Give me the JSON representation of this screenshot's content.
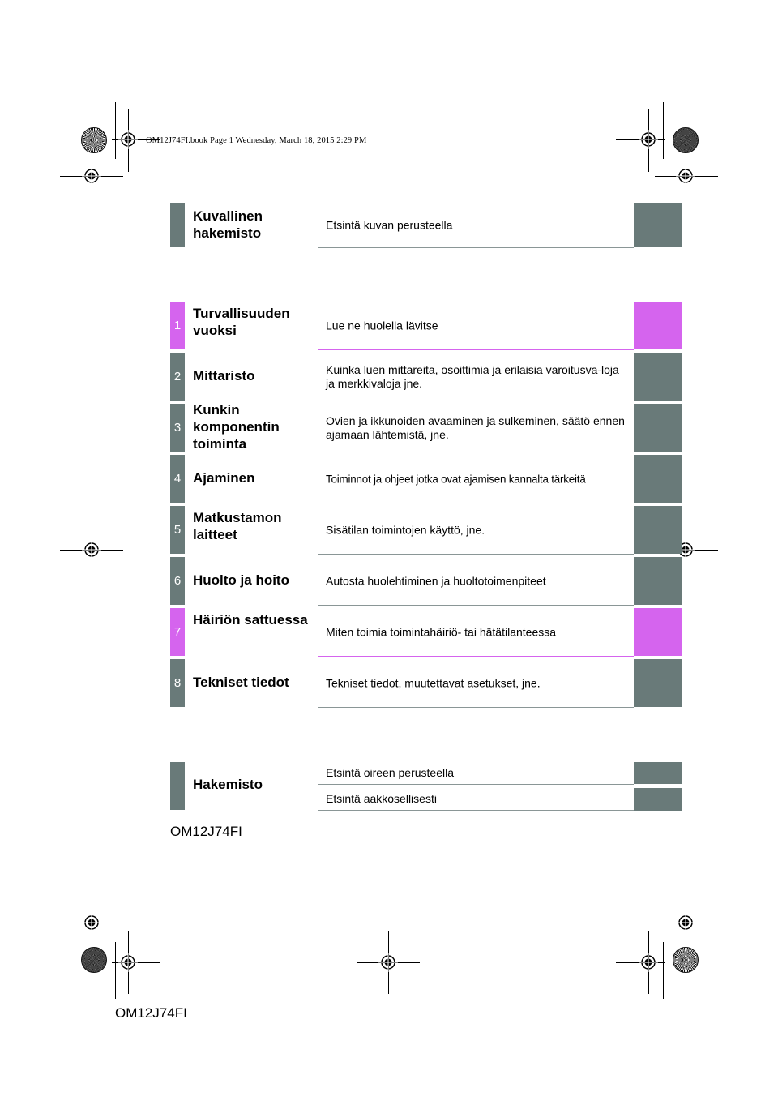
{
  "header": {
    "book_line": "OM12J74FI.book  Page 1  Wednesday, March 18, 2015  2:29 PM"
  },
  "picture_index": {
    "title": "Kuvallinen hakemisto",
    "description": "Etsintä kuvan perusteella"
  },
  "chapters": [
    {
      "number": "1",
      "title": "Turvallisuuden vuoksi",
      "description": "Lue ne huolella lävitse",
      "color": "#d564ee"
    },
    {
      "number": "2",
      "title": "Mittaristo",
      "description": "Kuinka luen mittareita, osoittimia ja erilaisia varoitusva-loja ja merkkivaloja jne.",
      "color": "#697a79"
    },
    {
      "number": "3",
      "title": "Kunkin komponentin toiminta",
      "description": "Ovien ja ikkunoiden avaaminen ja sulkeminen, säätö ennen ajamaan lähtemistä, jne.",
      "color": "#697a79"
    },
    {
      "number": "4",
      "title": "Ajaminen",
      "description": "Toiminnot ja ohjeet jotka ovat ajamisen kannalta tärkeitä",
      "color": "#697a79"
    },
    {
      "number": "5",
      "title": "Matkustamon laitteet",
      "description": "Sisätilan toimintojen käyttö, jne.",
      "color": "#697a79"
    },
    {
      "number": "6",
      "title": "Huolto ja hoito",
      "description": "Autosta huolehtiminen ja huoltotoimenpiteet",
      "color": "#697a79"
    },
    {
      "number": "7",
      "title": "Häiriön sattuessa",
      "description": "Miten toimia toimintahäiriö- tai hätätilanteessa",
      "color": "#d564ee"
    },
    {
      "number": "8",
      "title": "Tekniset tiedot",
      "description": "Tekniset tiedot, muutettavat asetukset, jne.",
      "color": "#697a79"
    }
  ],
  "index": {
    "title": "Hakemisto",
    "items": [
      "Etsintä oireen perusteella",
      "Etsintä aakkosellisesti"
    ]
  },
  "footer": {
    "code_upper": "OM12J74FI",
    "code_lower": "OM12J74FI"
  }
}
